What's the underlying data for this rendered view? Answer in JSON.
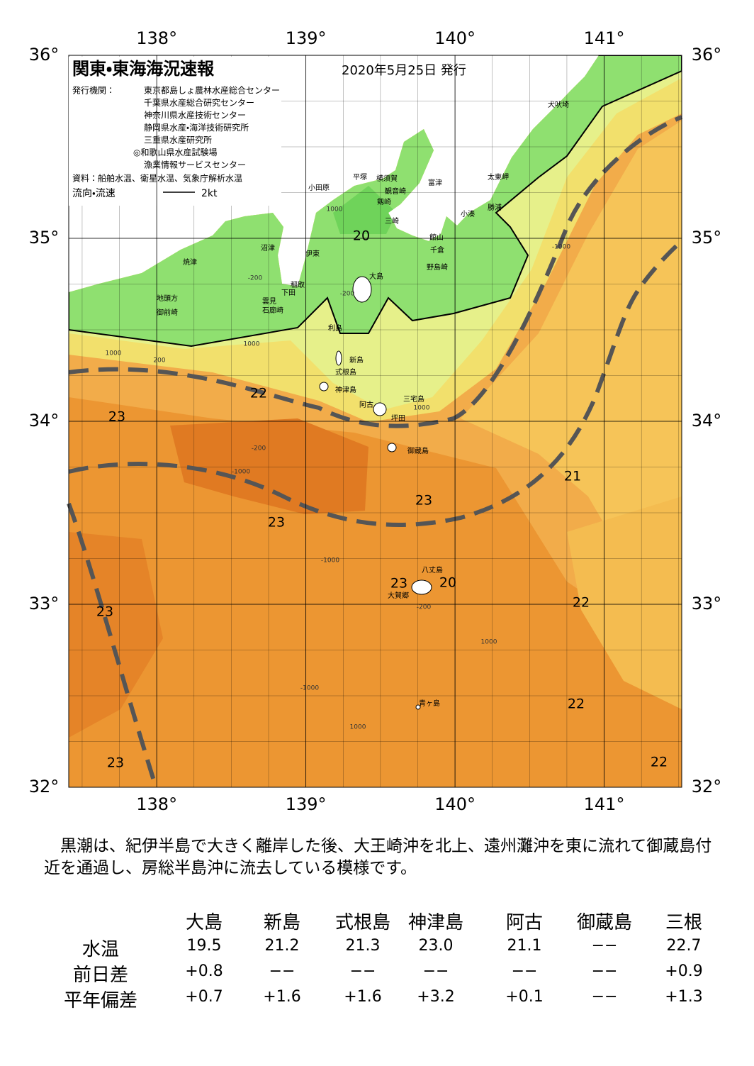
{
  "map": {
    "title": "関東・東海海況速報",
    "date": "2020年5月25日 発行",
    "publisher_label": "発行機関：",
    "publishers": [
      "東京都島しょ農林水産総合センター",
      "千葉県水産総合研究センター",
      "神奈川県水産技術センター",
      "静岡県水産・海洋技術研究所",
      "三重県水産研究所",
      "◎和歌山県水産試験場",
      "漁業情報サービスセンター"
    ],
    "source": "資料：船舶水温、衛星水温、気象庁解析水温",
    "flow_label": "流向・流速",
    "flow_scale": "2kt",
    "lonlim": [
      137.41,
      141.52
    ],
    "latlim": [
      32,
      36
    ],
    "lon_ticks": [
      {
        "value": 138,
        "label": "138°"
      },
      {
        "value": 139,
        "label": "139°"
      },
      {
        "value": 140,
        "label": "140°"
      },
      {
        "value": 141,
        "label": "141°"
      }
    ],
    "lat_ticks": [
      {
        "value": 32,
        "label": "32°"
      },
      {
        "value": 33,
        "label": "33°"
      },
      {
        "value": 34,
        "label": "34°"
      },
      {
        "value": 35,
        "label": "35°"
      },
      {
        "value": 36,
        "label": "36°"
      }
    ],
    "temperature_labels": [
      "20",
      "22",
      "23",
      "21",
      "23",
      "23",
      "23",
      "20",
      "22",
      "23",
      "22",
      "23",
      "22"
    ],
    "depth_labels": [
      "1000",
      "-200",
      "-200",
      "200",
      "1000",
      "1000",
      "-200",
      "-1000",
      "-1000",
      "1000",
      "-1000",
      "1000",
      "1000",
      "-200",
      "-1000"
    ],
    "places": [
      "犬吠埼",
      "太東岬",
      "勝浦",
      "小湊",
      "富津",
      "館山",
      "千倉",
      "野島崎",
      "横須賀",
      "観音崎",
      "剱崎",
      "三崎",
      "平塚",
      "小田原",
      "沼津",
      "伊東",
      "焼津",
      "稲取",
      "下田",
      "雲見",
      "石廊崎",
      "地頭方",
      "御前崎",
      "大島",
      "利島",
      "新島",
      "式根島",
      "神津島",
      "阿古",
      "三宅島",
      "坪田",
      "御蔵島",
      "八丈島",
      "大賀郷",
      "青ヶ島"
    ]
  },
  "note": "黒潮は、紀伊半島で大きく離岸した後、大王崎沖を北上、遠州灘沖を東に流れて御蔵島付近を通過し、房総半島沖に流去している模様です。",
  "table": {
    "columns": [
      "大島",
      "新島",
      "式根島",
      "神津島",
      "阿古",
      "御蔵島",
      "三根"
    ],
    "rows": [
      {
        "label": "水温",
        "values": [
          "19.5",
          "21.2",
          "21.3",
          "23.0",
          "21.1",
          "−−",
          "22.7"
        ]
      },
      {
        "label": "前日差",
        "values": [
          "+0.8",
          "−−",
          "−−",
          "−−",
          "−−",
          "−−",
          "+0.9"
        ]
      },
      {
        "label": "平年偏差",
        "values": [
          "+0.7",
          "+1.6",
          "+1.6",
          "+3.2",
          "+0.1",
          "−−",
          "+1.3"
        ]
      }
    ]
  }
}
